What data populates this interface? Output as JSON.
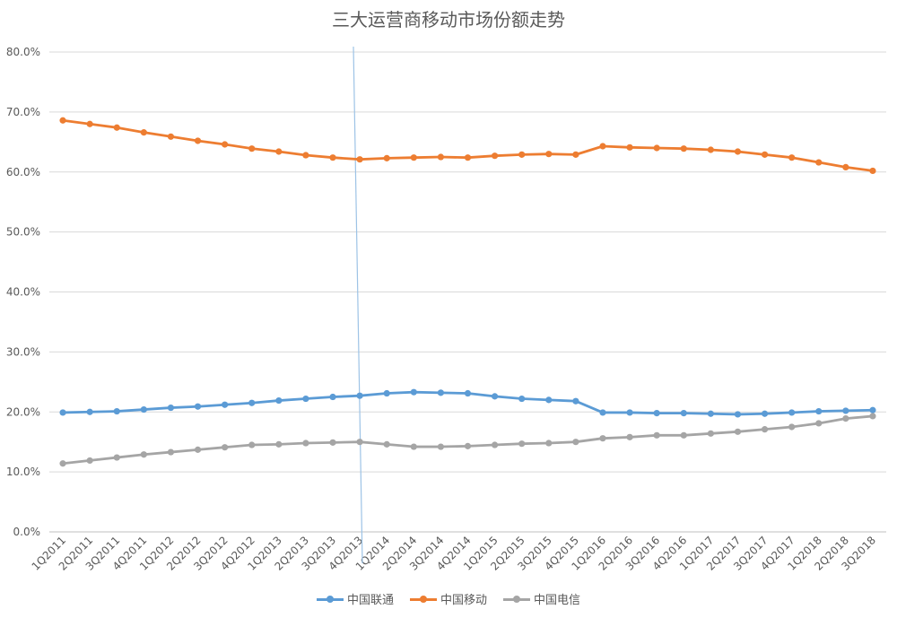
{
  "chart_data": {
    "type": "line",
    "title": "三大运营商移动市场份额走势",
    "xlabel": "",
    "ylabel": "",
    "ylim": [
      0,
      80
    ],
    "yticks": [
      "0.0%",
      "10.0%",
      "20.0%",
      "30.0%",
      "40.0%",
      "50.0%",
      "60.0%",
      "70.0%",
      "80.0%"
    ],
    "grid": true,
    "legend_position": "bottom",
    "categories": [
      "1Q2011",
      "2Q2011",
      "3Q2011",
      "4Q2011",
      "1Q2012",
      "2Q2012",
      "3Q2012",
      "4Q2012",
      "1Q2013",
      "2Q2013",
      "3Q2013",
      "4Q2013",
      "1Q2014",
      "2Q2014",
      "3Q2014",
      "4Q2014",
      "1Q2015",
      "2Q2015",
      "3Q2015",
      "4Q2015",
      "1Q2016",
      "2Q2016",
      "3Q2016",
      "4Q2016",
      "1Q2017",
      "2Q2017",
      "3Q2017",
      "4Q2017",
      "1Q2018",
      "2Q2018",
      "3Q2018"
    ],
    "series": [
      {
        "name": "中国联通",
        "color": "#5B9BD5",
        "values": [
          19.9,
          20.0,
          20.1,
          20.4,
          20.7,
          20.9,
          21.2,
          21.5,
          21.9,
          22.2,
          22.5,
          22.7,
          23.1,
          23.3,
          23.2,
          23.1,
          22.6,
          22.2,
          22.0,
          21.8,
          19.9,
          19.9,
          19.8,
          19.8,
          19.7,
          19.6,
          19.7,
          19.9,
          20.1,
          20.2,
          20.3
        ]
      },
      {
        "name": "中国移动",
        "color": "#ED7D31",
        "values": [
          68.6,
          68.0,
          67.4,
          66.6,
          65.9,
          65.2,
          64.6,
          63.9,
          63.4,
          62.8,
          62.4,
          62.1,
          62.3,
          62.4,
          62.5,
          62.4,
          62.7,
          62.9,
          63.0,
          62.9,
          64.3,
          64.1,
          64.0,
          63.9,
          63.7,
          63.4,
          62.9,
          62.4,
          61.6,
          60.8,
          60.2
        ]
      },
      {
        "name": "中国电信",
        "color": "#A5A5A5",
        "values": [
          11.4,
          11.9,
          12.4,
          12.9,
          13.3,
          13.7,
          14.1,
          14.5,
          14.6,
          14.8,
          14.9,
          15.0,
          14.6,
          14.2,
          14.2,
          14.3,
          14.5,
          14.7,
          14.8,
          15.0,
          15.6,
          15.8,
          16.1,
          16.1,
          16.4,
          16.7,
          17.1,
          17.5,
          18.1,
          18.9,
          19.3
        ]
      }
    ],
    "marker_line_color": "#9DC3E6"
  }
}
